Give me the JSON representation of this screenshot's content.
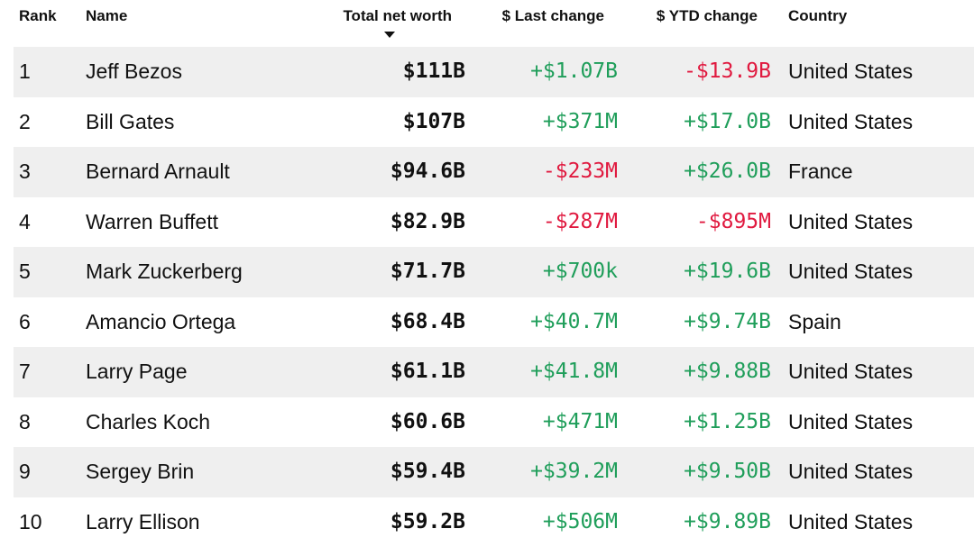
{
  "colors": {
    "positive": "#1f9e5a",
    "negative": "#e0193f",
    "stripe": "#efefef"
  },
  "icons": {
    "sort": "sort-descending-arrow-icon"
  },
  "headers": {
    "rank": "Rank",
    "name": "Name",
    "total_net_worth": "Total net worth",
    "last_change": "$ Last change",
    "ytd_change": "$ YTD change",
    "country": "Country"
  },
  "rows": [
    {
      "rank": "1",
      "name": "Jeff Bezos",
      "net_worth": "$111B",
      "last_change": "+$1.07B",
      "ytd_change": "-$13.9B",
      "country": "United States"
    },
    {
      "rank": "2",
      "name": "Bill Gates",
      "net_worth": "$107B",
      "last_change": "+$371M",
      "ytd_change": "+$17.0B",
      "country": "United States"
    },
    {
      "rank": "3",
      "name": "Bernard Arnault",
      "net_worth": "$94.6B",
      "last_change": "-$233M",
      "ytd_change": "+$26.0B",
      "country": "France"
    },
    {
      "rank": "4",
      "name": "Warren Buffett",
      "net_worth": "$82.9B",
      "last_change": "-$287M",
      "ytd_change": "-$895M",
      "country": "United States"
    },
    {
      "rank": "5",
      "name": "Mark Zuckerberg",
      "net_worth": "$71.7B",
      "last_change": "+$700k",
      "ytd_change": "+$19.6B",
      "country": "United States"
    },
    {
      "rank": "6",
      "name": "Amancio Ortega",
      "net_worth": "$68.4B",
      "last_change": "+$40.7M",
      "ytd_change": "+$9.74B",
      "country": "Spain"
    },
    {
      "rank": "7",
      "name": "Larry Page",
      "net_worth": "$61.1B",
      "last_change": "+$41.8M",
      "ytd_change": "+$9.88B",
      "country": "United States"
    },
    {
      "rank": "8",
      "name": "Charles Koch",
      "net_worth": "$60.6B",
      "last_change": "+$471M",
      "ytd_change": "+$1.25B",
      "country": "United States"
    },
    {
      "rank": "9",
      "name": "Sergey Brin",
      "net_worth": "$59.4B",
      "last_change": "+$39.2M",
      "ytd_change": "+$9.50B",
      "country": "United States"
    },
    {
      "rank": "10",
      "name": "Larry Ellison",
      "net_worth": "$59.2B",
      "last_change": "+$506M",
      "ytd_change": "+$9.89B",
      "country": "United States"
    }
  ]
}
